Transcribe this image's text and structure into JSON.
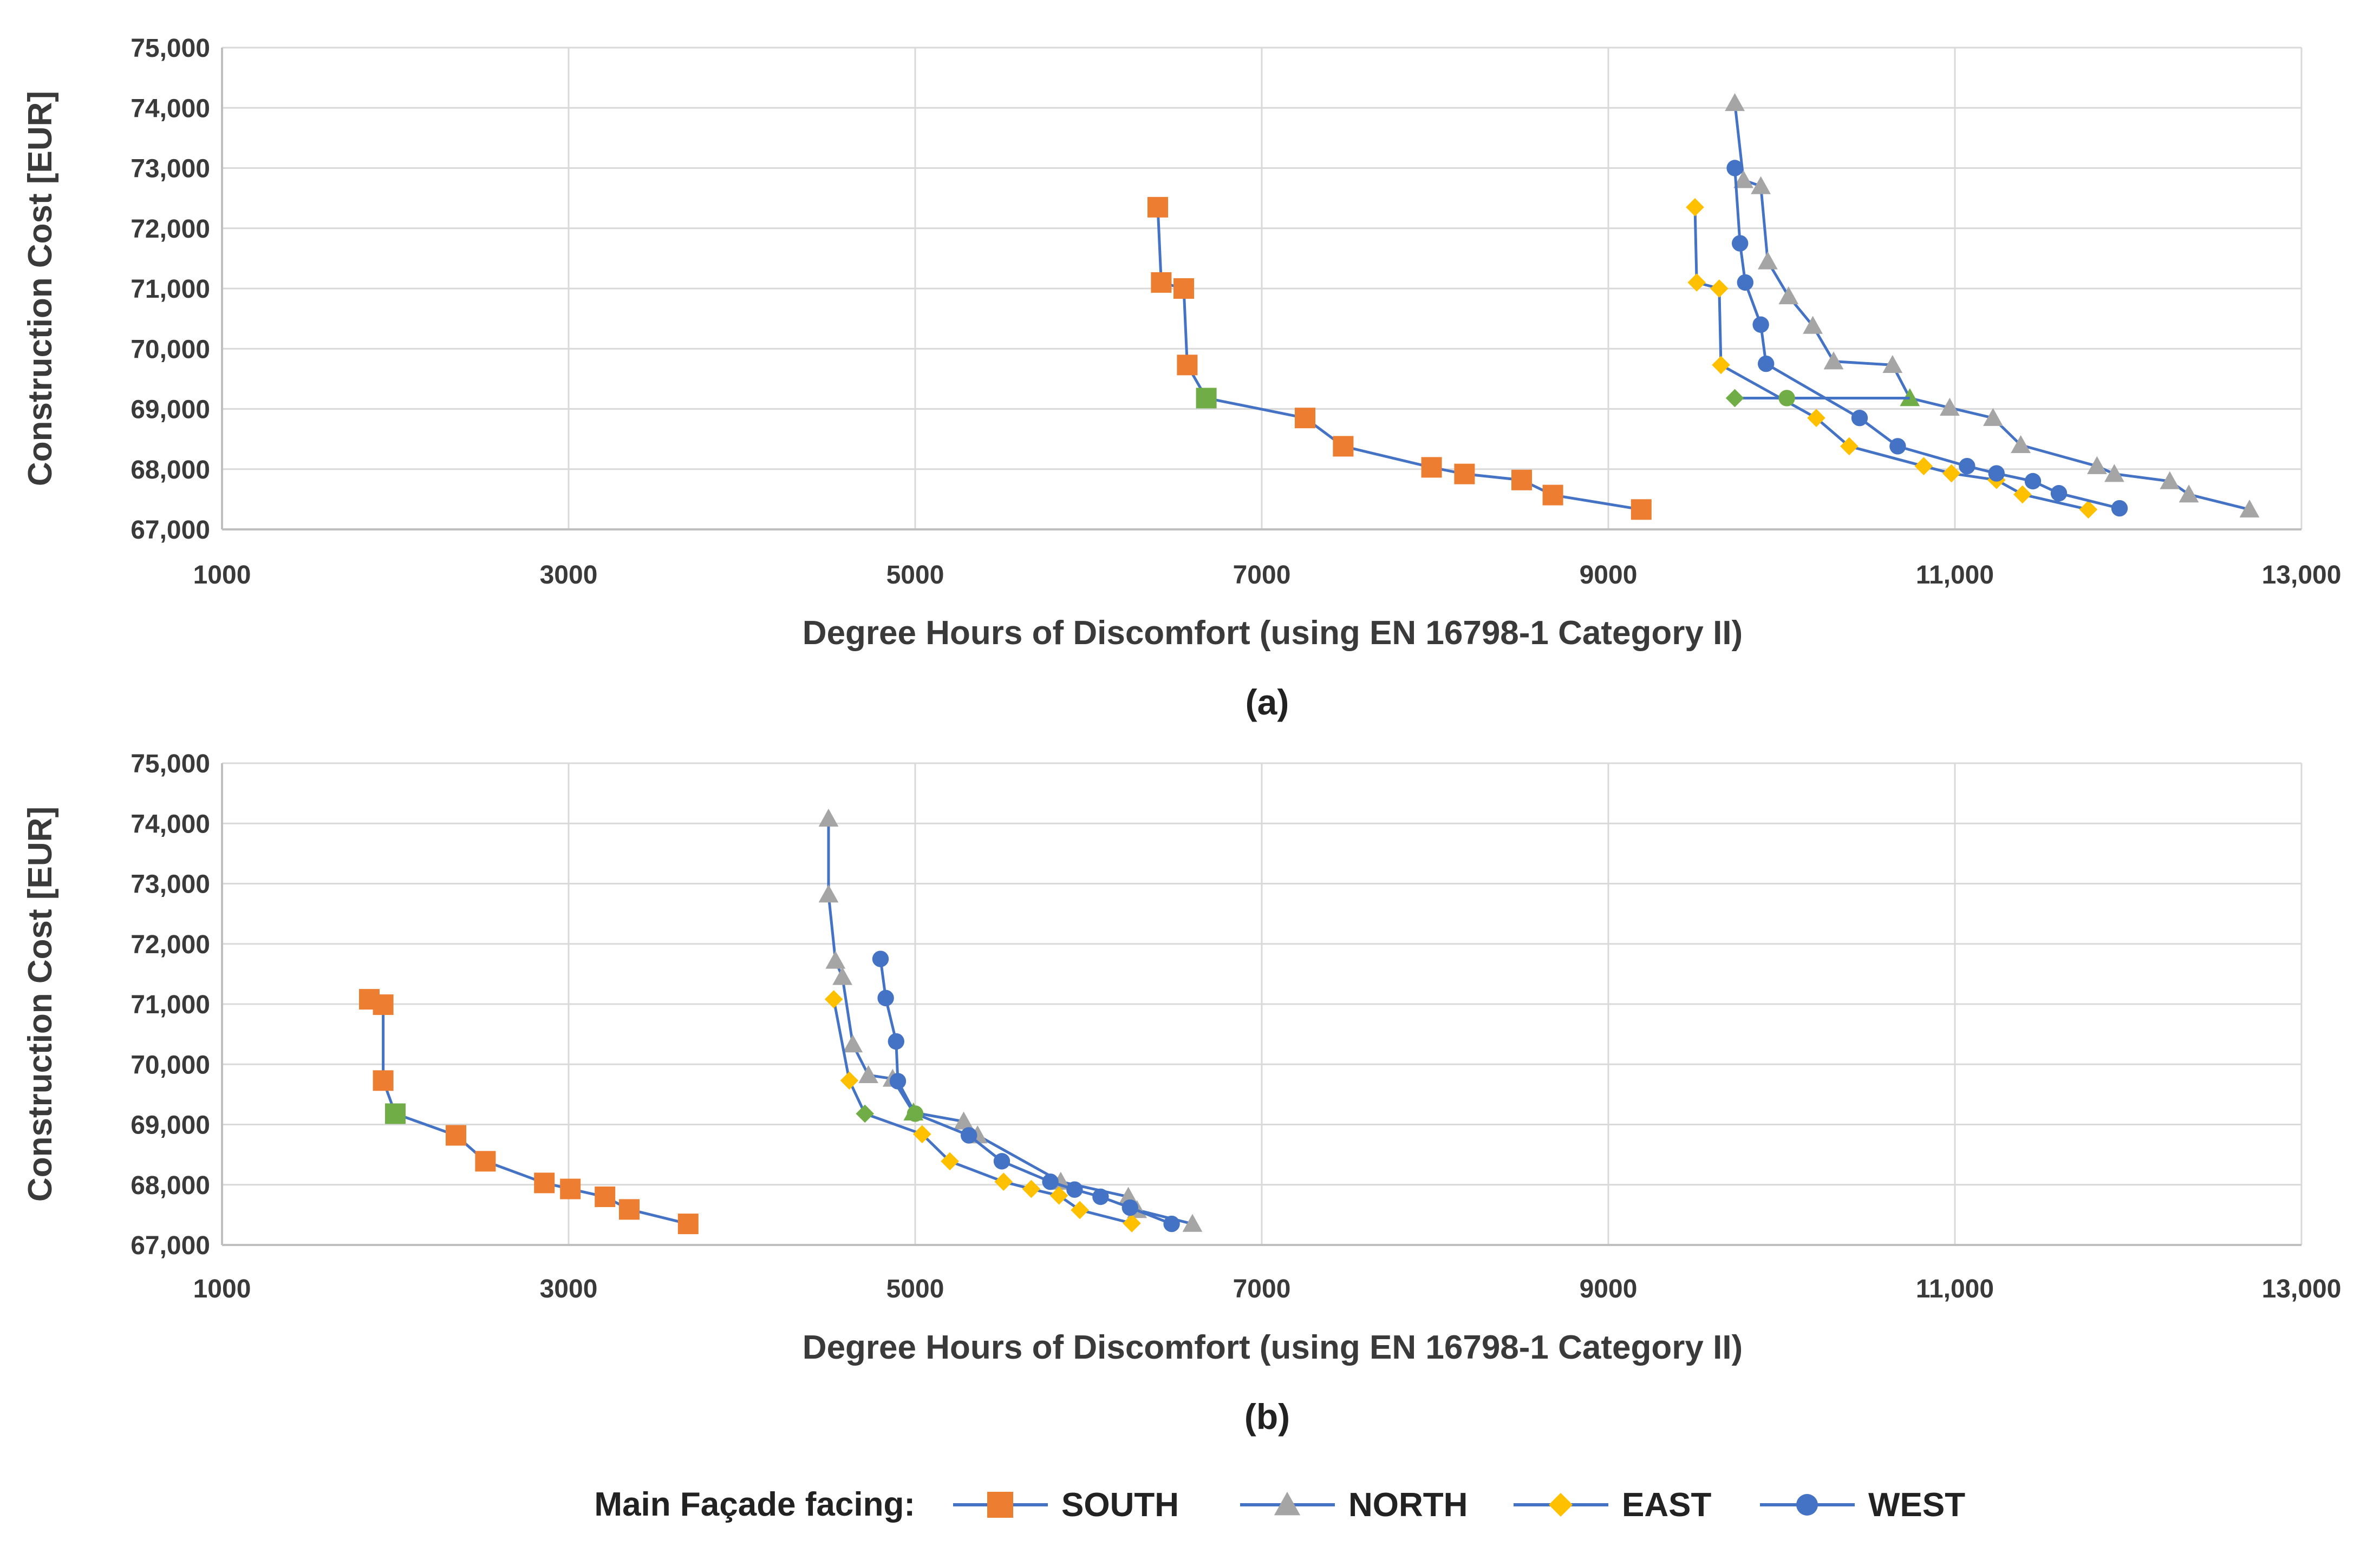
{
  "colors": {
    "line": "#4472c4",
    "south": "#ed7d31",
    "north": "#a5a5a5",
    "east": "#ffc000",
    "west": "#4472c4",
    "optimal": "#70ad47",
    "grid": "#d9d9d9"
  },
  "legend": {
    "title": "Main Façade facing:",
    "items": [
      {
        "label": "SOUTH",
        "key": "south",
        "marker": "square"
      },
      {
        "label": "NORTH",
        "key": "north",
        "marker": "triangle"
      },
      {
        "label": "EAST",
        "key": "east",
        "marker": "diamond"
      },
      {
        "label": "WEST",
        "key": "west",
        "marker": "circle"
      }
    ]
  },
  "chart_data": [
    {
      "type": "line",
      "panel_label": "(a)",
      "xlabel": "Degree Hours of Discomfort (using EN 16798-1 Category II)",
      "ylabel": "Construction Cost [EUR]",
      "xlim": [
        1000,
        13000
      ],
      "ylim": [
        67000,
        75000
      ],
      "grid": true,
      "x_ticks": [
        1000,
        3000,
        5000,
        7000,
        9000,
        11000,
        13000
      ],
      "x_tick_labels": [
        "1000",
        "3000",
        "5000",
        "7000",
        "9000",
        "11,000",
        "13,000"
      ],
      "y_ticks": [
        67000,
        68000,
        69000,
        70000,
        71000,
        72000,
        73000,
        74000,
        75000
      ],
      "y_tick_labels": [
        "67,000",
        "68,000",
        "69,000",
        "70,000",
        "71,000",
        "72,000",
        "73,000",
        "74,000",
        "75,000"
      ],
      "series": [
        {
          "name": "SOUTH",
          "key": "south",
          "marker": "square",
          "x": [
            6400,
            6420,
            6550,
            6570,
            6680,
            7250,
            7470,
            7980,
            8170,
            8500,
            8680,
            9190
          ],
          "y": [
            72350,
            71100,
            71000,
            69730,
            69180,
            68850,
            68380,
            68030,
            67920,
            67820,
            67570,
            67330
          ],
          "optimal_index": 4
        },
        {
          "name": "NORTH",
          "key": "north",
          "marker": "triangle",
          "x": [
            9730,
            9780,
            9880,
            9920,
            10040,
            10180,
            10300,
            10640,
            10740,
            10970,
            11220,
            11380,
            11820,
            11920,
            12240,
            12350,
            12700
          ],
          "y": [
            74080,
            72800,
            72700,
            71450,
            70870,
            70380,
            69790,
            69730,
            69180,
            69020,
            68850,
            68400,
            68050,
            67920,
            67800,
            67580,
            67330
          ],
          "optimal_index": 8
        },
        {
          "name": "EAST",
          "key": "east",
          "marker": "diamond",
          "x": [
            9500,
            9510,
            9640,
            9650,
            10200,
            10390,
            10820,
            10980,
            11240,
            11390,
            11770
          ],
          "y": [
            72350,
            71100,
            71000,
            69730,
            68850,
            68380,
            68050,
            67930,
            67820,
            67580,
            67330
          ],
          "optimal_index": -1
        },
        {
          "name": "WEST",
          "key": "west",
          "marker": "circle",
          "x": [
            9730,
            9760,
            9790,
            9880,
            9910,
            10450,
            10670,
            11070,
            11240,
            11450,
            11600,
            11950
          ],
          "y": [
            73000,
            71750,
            71100,
            70400,
            69750,
            68850,
            68380,
            68050,
            67930,
            67800,
            67600,
            67350
          ],
          "optimal_index": -1
        },
        {
          "name": "WEST (optimal connector)",
          "key": "west_link",
          "marker": "none",
          "x": [
            9730,
            10030,
            10740
          ],
          "y": [
            69180,
            69180,
            69180
          ],
          "optimal_markers": [
            {
              "x": 9730,
              "y": 69180,
              "marker": "diamond"
            },
            {
              "x": 10030,
              "y": 69180,
              "marker": "circle"
            }
          ]
        }
      ]
    },
    {
      "type": "line",
      "panel_label": "(b)",
      "xlabel": "Degree Hours of Discomfort (using EN 16798-1 Category II)",
      "ylabel": "Construction Cost [EUR]",
      "xlim": [
        1000,
        13000
      ],
      "ylim": [
        67000,
        75000
      ],
      "grid": true,
      "x_ticks": [
        1000,
        3000,
        5000,
        7000,
        9000,
        11000,
        13000
      ],
      "x_tick_labels": [
        "1000",
        "3000",
        "5000",
        "7000",
        "9000",
        "11,000",
        "13,000"
      ],
      "y_ticks": [
        67000,
        68000,
        69000,
        70000,
        71000,
        72000,
        73000,
        74000,
        75000
      ],
      "y_tick_labels": [
        "67,000",
        "68,000",
        "69,000",
        "70,000",
        "71,000",
        "72,000",
        "73,000",
        "74,000",
        "75,000"
      ],
      "series": [
        {
          "name": "SOUTH",
          "key": "south",
          "marker": "square",
          "x": [
            1850,
            1930,
            1930,
            2000,
            2350,
            2520,
            2860,
            3010,
            3210,
            3350,
            3690
          ],
          "y": [
            71080,
            70990,
            69730,
            69180,
            68820,
            68390,
            68030,
            67930,
            67800,
            67590,
            67350
          ],
          "optimal_index": 3
        },
        {
          "name": "NORTH",
          "key": "north",
          "marker": "triangle",
          "x": [
            4500,
            4500,
            4540,
            4580,
            4640,
            4730,
            4870,
            4990,
            5280,
            5360,
            5840,
            6230,
            6280,
            6600
          ],
          "y": [
            74080,
            72820,
            71720,
            71450,
            70330,
            69820,
            69760,
            69200,
            69050,
            68820,
            68050,
            67800,
            67580,
            67350
          ],
          "optimal_index": 7
        },
        {
          "name": "EAST",
          "key": "east",
          "marker": "diamond",
          "x": [
            4530,
            4620,
            4710,
            5040,
            5200,
            5510,
            5670,
            5830,
            5950,
            6250
          ],
          "y": [
            71080,
            69730,
            69180,
            68840,
            68390,
            68050,
            67930,
            67820,
            67580,
            67360
          ],
          "optimal_index": 2
        },
        {
          "name": "WEST",
          "key": "west",
          "marker": "circle",
          "x": [
            4800,
            4830,
            4890,
            4900,
            5000,
            5310,
            5500,
            5780,
            5920,
            6070,
            6240,
            6480
          ],
          "y": [
            71750,
            71100,
            70380,
            69720,
            69180,
            68820,
            68390,
            68050,
            67920,
            67800,
            67620,
            67350
          ],
          "optimal_index": 4
        }
      ]
    }
  ]
}
